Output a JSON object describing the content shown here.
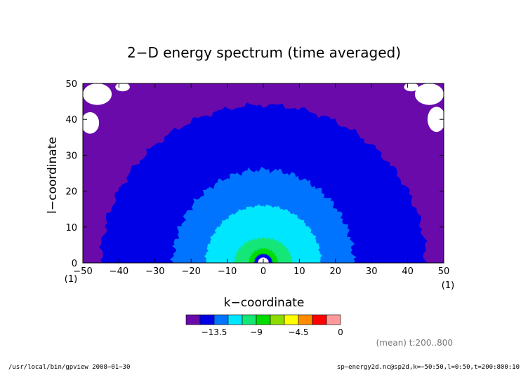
{
  "chart_data": {
    "type": "heatmap",
    "subtype": "filled-contour",
    "title": "2−D energy spectrum (time averaged)",
    "xlabel": "k−coordinate",
    "ylabel": "l−coordinate",
    "xlim": [
      -50,
      50
    ],
    "ylim": [
      0,
      50
    ],
    "x_ticks": [
      -50,
      -40,
      -30,
      -20,
      -10,
      0,
      10,
      20,
      30,
      40,
      50
    ],
    "y_ticks": [
      0,
      10,
      20,
      30,
      40,
      50
    ],
    "x_tick_labels": [
      "−50",
      "−40",
      "−30",
      "−20",
      "−10",
      "0",
      "10",
      "20",
      "30",
      "40",
      "50"
    ],
    "y_tick_labels": [
      "0",
      "10",
      "20",
      "30",
      "40",
      "50"
    ],
    "x_unit": "(1)",
    "x_unit_right": "(1)",
    "y_unit": "(1)",
    "grid": false,
    "contour_regions": [
      {
        "level": "purple",
        "radius_x": 50,
        "radius_y": 50,
        "color": "#6a0aab"
      },
      {
        "level": "blue",
        "radius_x": 45,
        "radius_y": 44,
        "color": "#0000e6"
      },
      {
        "level": "mid-blue",
        "radius_x": 25,
        "radius_y": 26,
        "color": "#0073ff"
      },
      {
        "level": "cyan",
        "radius_x": 16,
        "radius_y": 16,
        "color": "#00e6ff"
      },
      {
        "level": "aquamarine",
        "radius_x": 8,
        "radius_y": 7,
        "color": "#14e678"
      },
      {
        "level": "green",
        "radius_x": 4,
        "radius_y": 4,
        "color": "#00dc00"
      },
      {
        "level": "blue-core",
        "radius_x": 2.5,
        "radius_y": 2.5,
        "color": "#0000e6"
      },
      {
        "level": "white-core",
        "radius_x": 1.5,
        "radius_y": 1.5,
        "color": "#ffffff"
      }
    ],
    "colorbar": {
      "colors": [
        "#6a0aab",
        "#0000e6",
        "#0073ff",
        "#00e6ff",
        "#14e678",
        "#00dc00",
        "#8cdc00",
        "#ffff00",
        "#ff8c00",
        "#ff0000",
        "#ff9a9a"
      ],
      "labels": [
        "−13.5",
        "−9",
        "−4.5",
        "0"
      ]
    },
    "annotation": "(mean) t:200..800"
  },
  "footer": {
    "left": "/usr/local/bin/gpview   2008−01−30",
    "right": "sp−energy2d.nc@sp2d,k=−50:50,l=0:50,t=200:800:10"
  }
}
